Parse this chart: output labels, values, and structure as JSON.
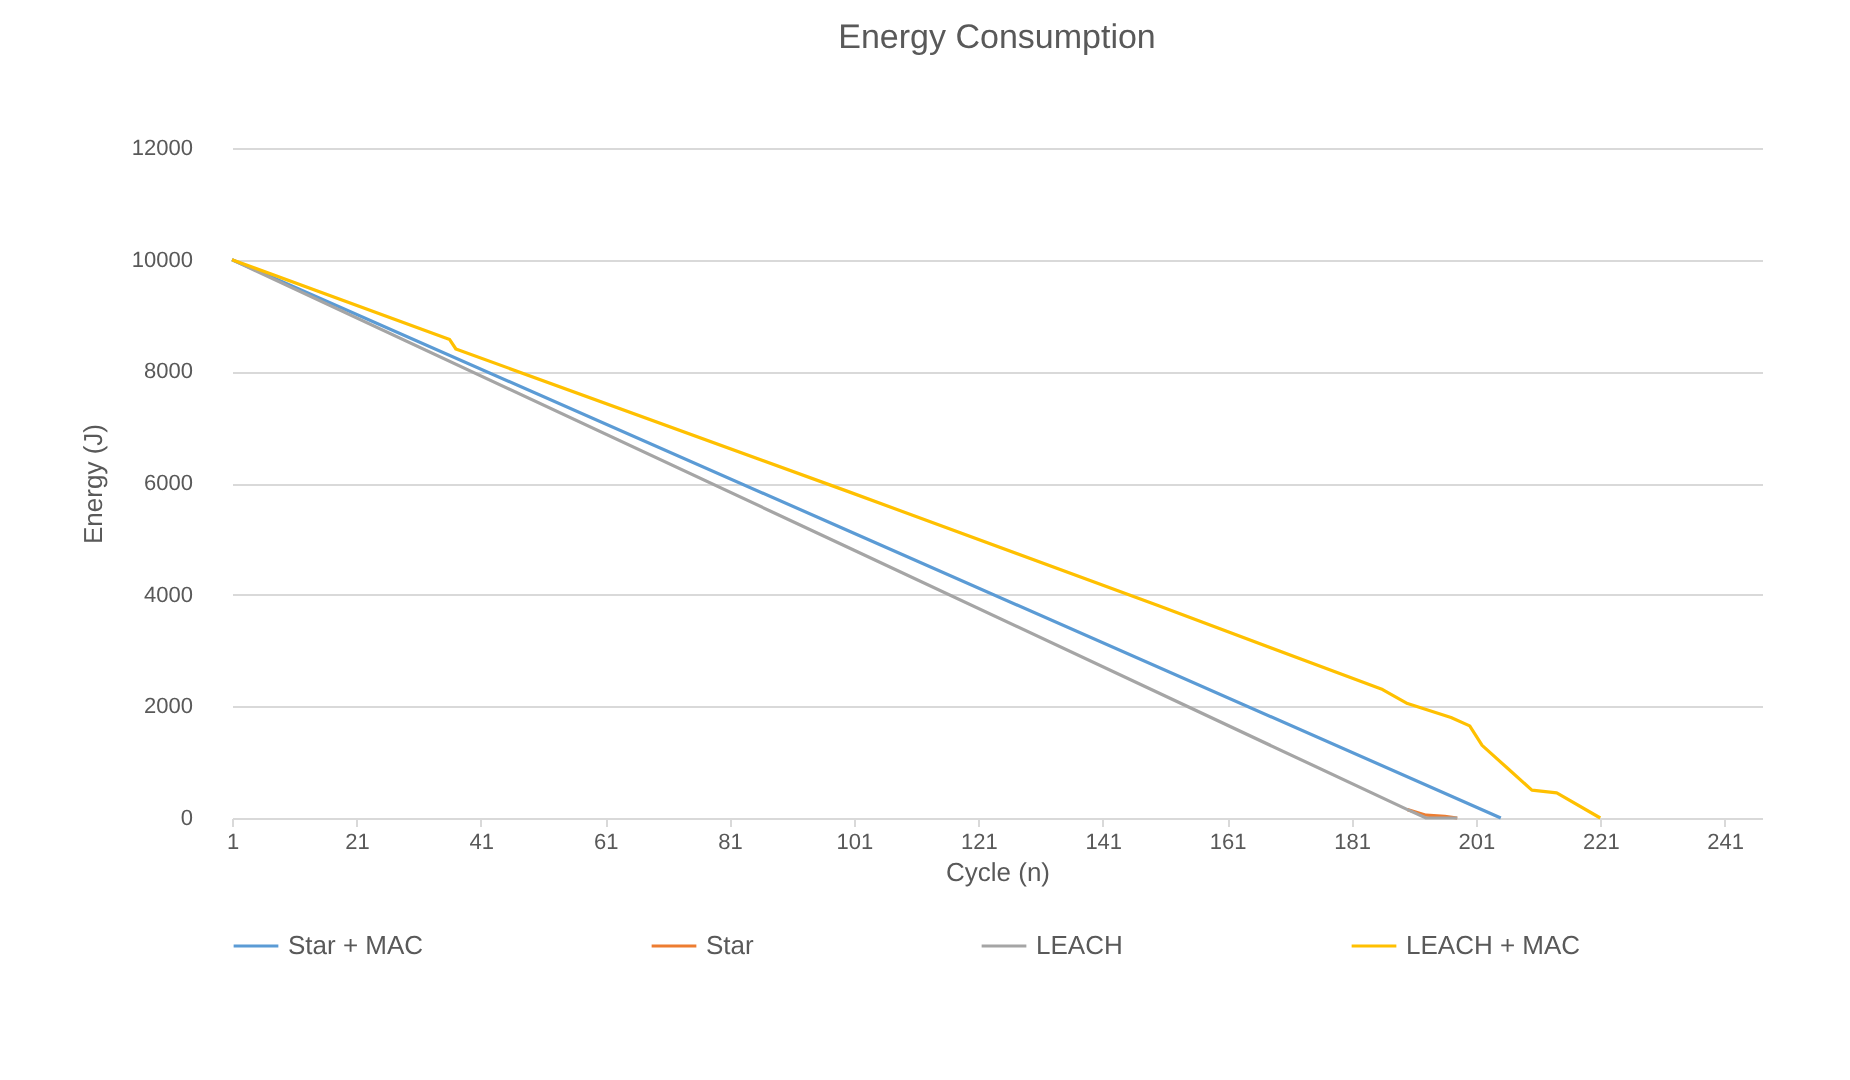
{
  "chart_data": {
    "type": "line",
    "title": "Energy Consumption",
    "xlabel": "Cycle (n)",
    "ylabel": "Energy (J)",
    "xlim": [
      1,
      247
    ],
    "xticks": [
      1,
      21,
      41,
      61,
      81,
      101,
      121,
      141,
      161,
      181,
      201,
      221,
      241
    ],
    "ylim": [
      0,
      12000
    ],
    "yticks": [
      0,
      2000,
      4000,
      6000,
      8000,
      10000,
      12000
    ],
    "grid": "y",
    "legend": "bottom",
    "marker": "none",
    "line_style": "solid",
    "series": [
      {
        "name": "Star + MAC",
        "color": "#5b9bd5",
        "x": [
          1,
          100,
          203,
          205
        ],
        "values": [
          10000,
          5150,
          100,
          0
        ]
      },
      {
        "name": "Star",
        "color": "#ed7d31",
        "x": [
          190,
          193,
          196,
          198
        ],
        "values": [
          150,
          50,
          30,
          0
        ]
      },
      {
        "name": "LEACH",
        "color": "#a5a5a5",
        "x": [
          1,
          100,
          190,
          193,
          198
        ],
        "values": [
          10000,
          4850,
          150,
          0,
          0
        ]
      },
      {
        "name": "LEACH + MAC",
        "color": "#ffc000",
        "x": [
          1,
          36,
          37,
          100,
          150,
          186,
          190,
          197,
          200,
          202,
          206,
          210,
          214,
          221
        ],
        "values": [
          10000,
          8570,
          8400,
          5850,
          3800,
          2300,
          2050,
          1800,
          1650,
          1300,
          900,
          500,
          450,
          0
        ]
      }
    ]
  }
}
